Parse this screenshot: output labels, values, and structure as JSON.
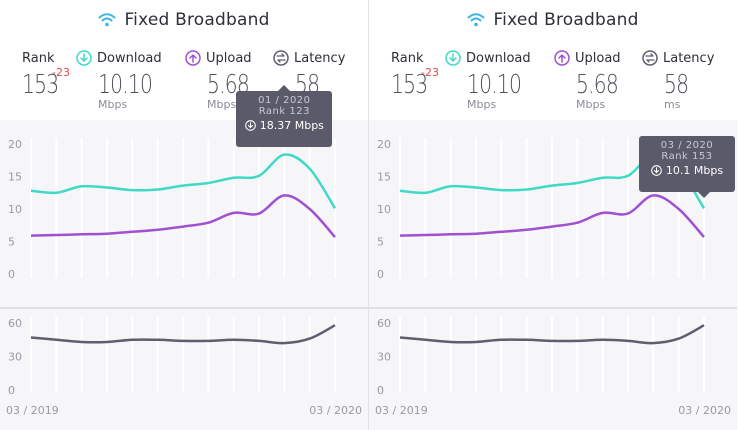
{
  "colors": {
    "download": "#3fd9c8",
    "upload": "#a050d0",
    "latency": "#5e5e70",
    "wifi": "#3bb4e5",
    "rank_delta": "#e5484d",
    "grid": "#dcdce2",
    "axis_text": "#9a9aa4"
  },
  "panels": [
    {
      "title": "Fixed Broadband",
      "icon": "wifi-icon",
      "stats": {
        "rank_label": "Rank",
        "rank_value": "153",
        "rank_delta": "-23",
        "download_label": "Download",
        "download_value": "10.10",
        "download_unit": "Mbps",
        "upload_label": "Upload",
        "upload_value": "5.68",
        "upload_unit": "Mbps",
        "latency_label": "Latency",
        "latency_value": "58",
        "latency_unit": "ms"
      },
      "tooltip": {
        "date": "01 / 2020",
        "rank": "Rank 123",
        "value": "18.37 Mbps",
        "month_index": 10
      },
      "x_start_label": "03 / 2019",
      "x_end_label": "03 / 2020"
    },
    {
      "title": "Fixed Broadband",
      "icon": "wifi-icon",
      "stats": {
        "rank_label": "Rank",
        "rank_value": "153",
        "rank_delta": "-23",
        "download_label": "Download",
        "download_value": "10.10",
        "download_unit": "Mbps",
        "upload_label": "Upload",
        "upload_value": "5.68",
        "upload_unit": "Mbps",
        "latency_label": "Latency",
        "latency_value": "58",
        "latency_unit": "ms"
      },
      "tooltip": {
        "date": "03 / 2020",
        "rank": "Rank 153",
        "value": "10.1 Mbps",
        "month_index": 12
      },
      "x_start_label": "03 / 2019",
      "x_end_label": "03 / 2020"
    }
  ],
  "chart_data": [
    {
      "type": "line",
      "x": [
        "03/2019",
        "04/2019",
        "05/2019",
        "06/2019",
        "07/2019",
        "08/2019",
        "09/2019",
        "10/2019",
        "11/2019",
        "12/2019",
        "01/2020",
        "02/2020",
        "03/2020"
      ],
      "series": [
        {
          "name": "Download",
          "values": [
            12.8,
            12.5,
            13.5,
            13.3,
            12.9,
            13.0,
            13.6,
            14.0,
            14.8,
            15.1,
            18.37,
            16.2,
            10.1
          ]
        },
        {
          "name": "Upload",
          "values": [
            5.9,
            6.0,
            6.1,
            6.2,
            6.5,
            6.8,
            7.3,
            7.9,
            9.4,
            9.3,
            12.1,
            10.0,
            5.68
          ]
        }
      ],
      "yticks": [
        0,
        5,
        10,
        15,
        20
      ],
      "ylim": [
        0,
        20
      ]
    },
    {
      "type": "line",
      "x": [
        "03/2019",
        "04/2019",
        "05/2019",
        "06/2019",
        "07/2019",
        "08/2019",
        "09/2019",
        "10/2019",
        "11/2019",
        "12/2019",
        "01/2020",
        "02/2020",
        "03/2020"
      ],
      "series": [
        {
          "name": "Latency",
          "values": [
            47,
            45,
            43,
            43,
            45,
            45,
            44,
            44,
            45,
            44,
            42,
            46,
            58
          ]
        }
      ],
      "yticks": [
        0,
        30,
        60
      ],
      "ylim": [
        0,
        60
      ]
    }
  ]
}
